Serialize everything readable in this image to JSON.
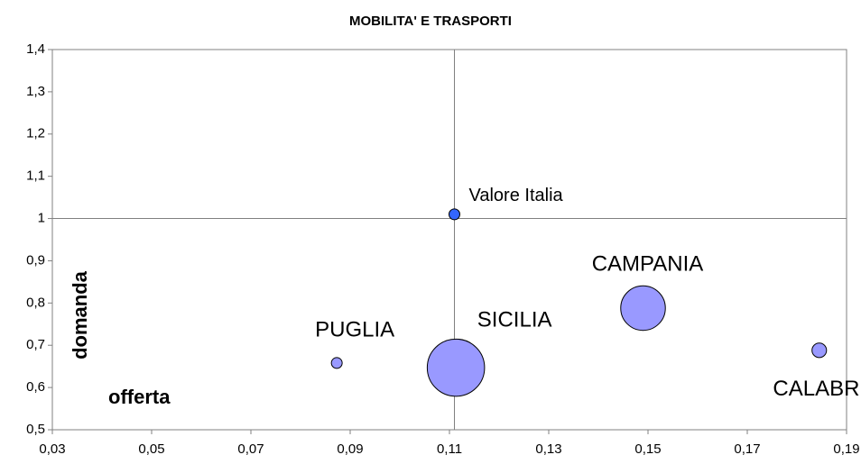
{
  "chart_data": {
    "type": "bubble",
    "title": "MOBILITA' E TRASPORTI",
    "x_label": "offerta",
    "y_label": "domanda",
    "xlim": [
      0.03,
      0.19
    ],
    "ylim": [
      0.5,
      1.4
    ],
    "xticks": [
      {
        "value": 0.03,
        "label": "0,03"
      },
      {
        "value": 0.05,
        "label": "0,05"
      },
      {
        "value": 0.07,
        "label": "0,07"
      },
      {
        "value": 0.09,
        "label": "0,09"
      },
      {
        "value": 0.11,
        "label": "0,11"
      },
      {
        "value": 0.13,
        "label": "0,13"
      },
      {
        "value": 0.15,
        "label": "0,15"
      },
      {
        "value": 0.17,
        "label": "0,17"
      },
      {
        "value": 0.19,
        "label": "0,19"
      }
    ],
    "yticks": [
      {
        "value": 0.5,
        "label": "0,5"
      },
      {
        "value": 0.6,
        "label": "0,6"
      },
      {
        "value": 0.7,
        "label": "0,7"
      },
      {
        "value": 0.8,
        "label": "0,8"
      },
      {
        "value": 0.9,
        "label": "0,9"
      },
      1,
      {
        "value": 1.1,
        "label": "1,1"
      },
      {
        "value": 1.2,
        "label": "1,2"
      },
      {
        "value": 1.3,
        "label": "1,3"
      },
      {
        "value": 1.4,
        "label": "1,4"
      }
    ],
    "series": [
      {
        "name": "PUGLIA",
        "color": "#9999ff",
        "x": [
          0.0873
        ],
        "values": [
          0.658
        ],
        "sizes": [
          1
        ]
      },
      {
        "name": "SICILIA",
        "color": "#9999ff",
        "x": [
          0.1113
        ],
        "values": [
          0.647
        ],
        "sizes": [
          28
        ]
      },
      {
        "name": "CAMPANIA",
        "color": "#9999ff",
        "x": [
          0.149
        ],
        "values": [
          0.788
        ],
        "sizes": [
          17
        ]
      },
      {
        "name": "CALABRIA",
        "color": "#9999ff",
        "x": [
          0.1845
        ],
        "values": [
          0.688
        ],
        "sizes": [
          1.8
        ]
      },
      {
        "name": "Valore Italia",
        "color": "#3366ff",
        "label_color": "#3333ff",
        "x": [
          0.111
        ],
        "values": [
          1.01
        ],
        "sizes": [
          1
        ]
      }
    ],
    "reference_x": 0.111,
    "reference_y": 1
  }
}
